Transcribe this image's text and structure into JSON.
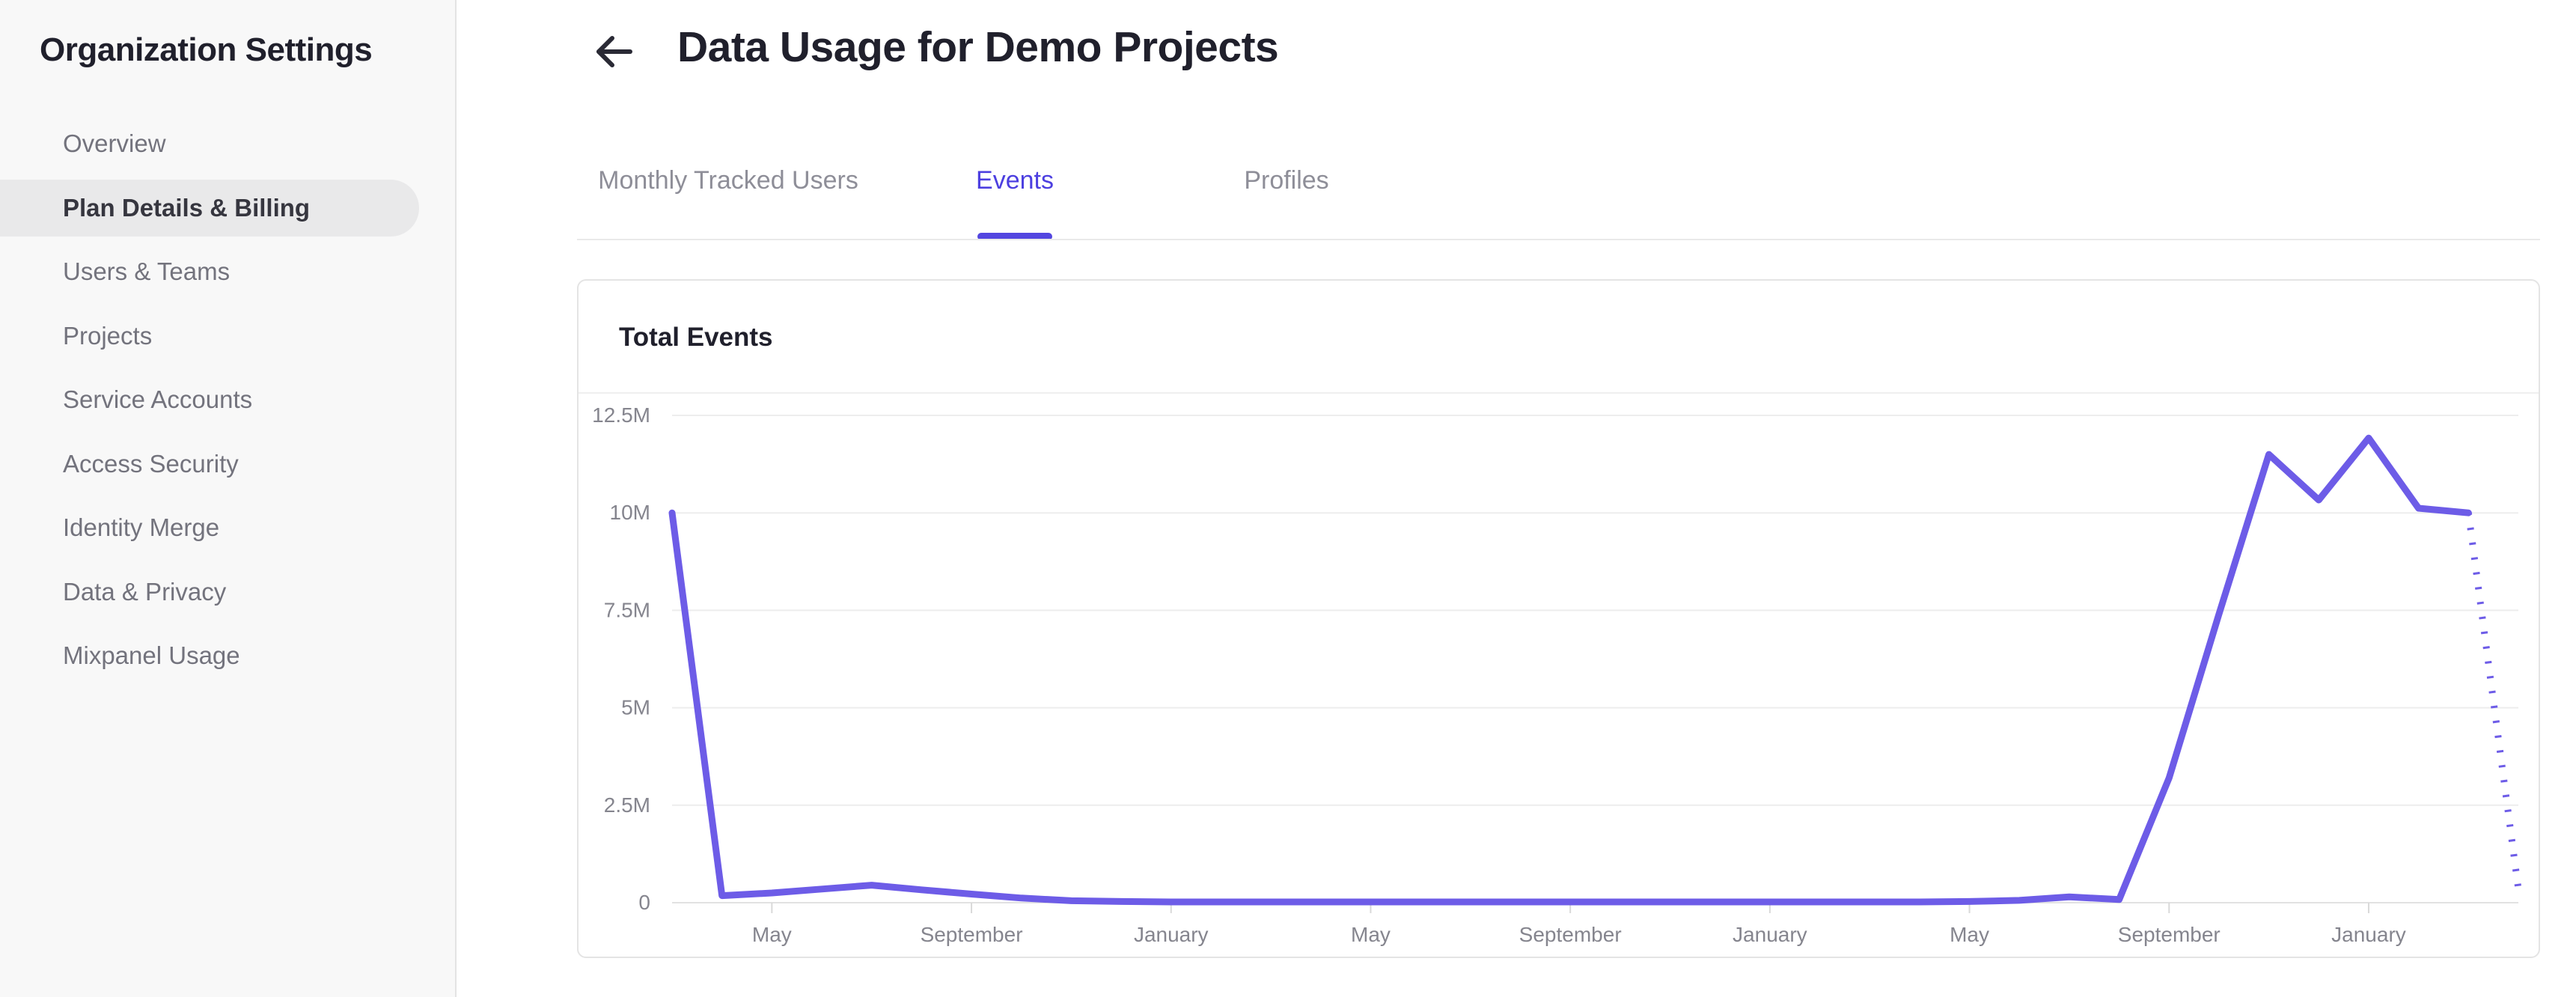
{
  "sidebar": {
    "title": "Organization Settings",
    "items": [
      {
        "label": "Overview",
        "selected": false
      },
      {
        "label": "Plan Details & Billing",
        "selected": true
      },
      {
        "label": "Users & Teams",
        "selected": false
      },
      {
        "label": "Projects",
        "selected": false
      },
      {
        "label": "Service Accounts",
        "selected": false
      },
      {
        "label": "Access Security",
        "selected": false
      },
      {
        "label": "Identity Merge",
        "selected": false
      },
      {
        "label": "Data & Privacy",
        "selected": false
      },
      {
        "label": "Mixpanel Usage",
        "selected": false
      }
    ]
  },
  "header": {
    "title": "Data Usage for Demo Projects"
  },
  "tabs": [
    {
      "label": "Monthly Tracked Users",
      "active": false
    },
    {
      "label": "Events",
      "active": true
    },
    {
      "label": "Profiles",
      "active": false
    }
  ],
  "chart_data": {
    "type": "line",
    "title": "Total Events",
    "ylabel": "",
    "xlabel": "",
    "ylim_millions": [
      0,
      12.5
    ],
    "y_tick_labels": [
      "12.5M",
      "10M",
      "7.5M",
      "5M",
      "2.5M",
      "0"
    ],
    "y_tick_values_millions": [
      12.5,
      10,
      7.5,
      5,
      2.5,
      0
    ],
    "x_tick_labels": [
      "May",
      "September",
      "January",
      "May",
      "September",
      "January",
      "May",
      "September",
      "January"
    ],
    "x_tick_month_indices": [
      2,
      6,
      10,
      14,
      18,
      22,
      26,
      30,
      34
    ],
    "series_start_month": "March",
    "months_total": 38,
    "values_millions": [
      10.0,
      0.18,
      0.25,
      0.35,
      0.45,
      0.33,
      0.22,
      0.12,
      0.05,
      0.03,
      0.02,
      0.02,
      0.02,
      0.02,
      0.02,
      0.02,
      0.02,
      0.02,
      0.02,
      0.02,
      0.02,
      0.02,
      0.02,
      0.02,
      0.02,
      0.02,
      0.03,
      0.06,
      0.15,
      0.08,
      3.2,
      7.4,
      11.5,
      10.33,
      11.92,
      10.12,
      10.0,
      0.35
    ],
    "dotted_segment_start_index": 36,
    "grid": true,
    "legend": "none"
  },
  "colors": {
    "line": "#6d5ce7",
    "grid": "#ededed",
    "axis": "#e2e2e2",
    "tick": "#d9d9d9",
    "axis_label": "#85858e",
    "tab_active": "#4c3fe0",
    "back_arrow": "#2a2a35"
  }
}
